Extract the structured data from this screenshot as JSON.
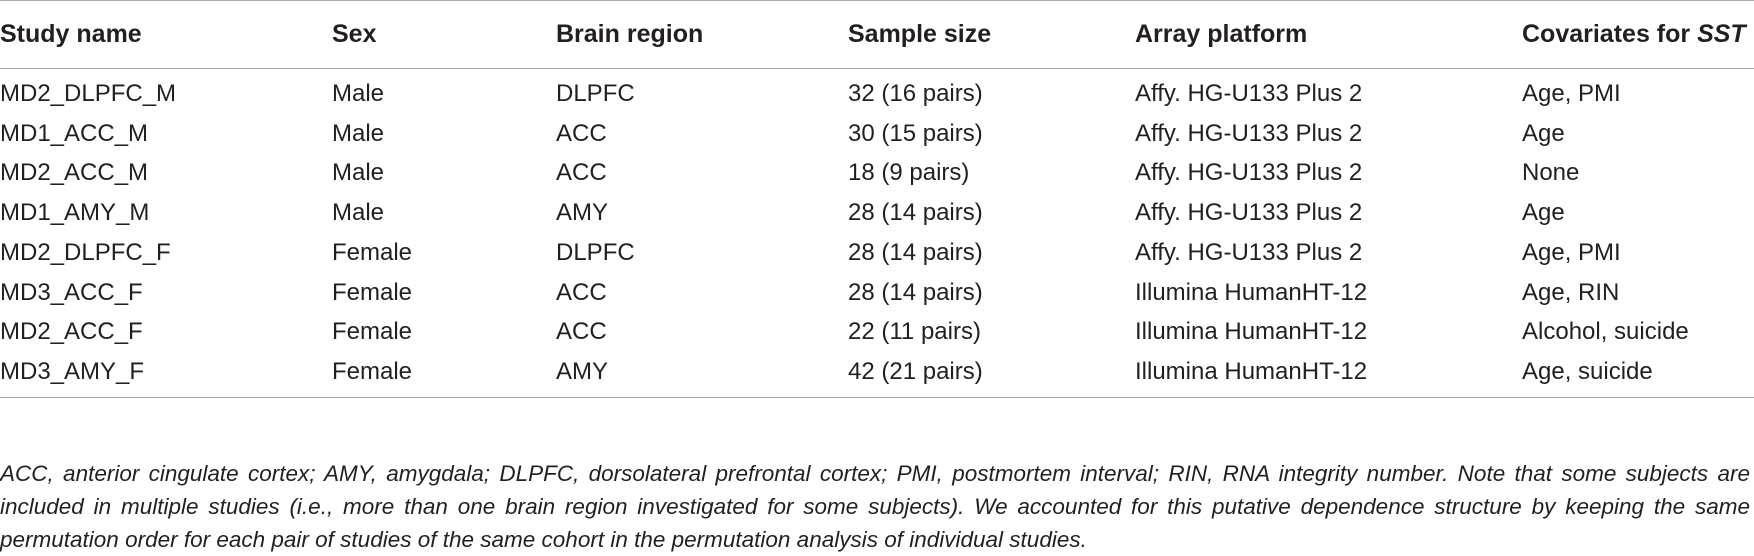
{
  "table": {
    "headers": {
      "study_name": "Study name",
      "sex": "Sex",
      "brain_region": "Brain region",
      "sample_size": "Sample size",
      "array_platform": "Array platform",
      "covariates_prefix": "Covariates for ",
      "covariates_em": "SST"
    },
    "rows": [
      [
        "MD2_DLPFC_M",
        "Male",
        "DLPFC",
        "32 (16 pairs)",
        "Affy. HG-U133 Plus 2",
        "Age, PMI"
      ],
      [
        "MD1_ACC_M",
        "Male",
        "ACC",
        "30 (15 pairs)",
        "Affy. HG-U133 Plus 2",
        "Age"
      ],
      [
        "MD2_ACC_M",
        "Male",
        "ACC",
        "18 (9 pairs)",
        "Affy. HG-U133 Plus 2",
        "None"
      ],
      [
        "MD1_AMY_M",
        "Male",
        "AMY",
        "28 (14 pairs)",
        "Affy. HG-U133 Plus 2",
        "Age"
      ],
      [
        "MD2_DLPFC_F",
        "Female",
        "DLPFC",
        "28 (14 pairs)",
        "Affy. HG-U133 Plus 2",
        "Age, PMI"
      ],
      [
        "MD3_ACC_F",
        "Female",
        "ACC",
        "28 (14 pairs)",
        "Illumina HumanHT-12",
        "Age, RIN"
      ],
      [
        "MD2_ACC_F",
        "Female",
        "ACC",
        "22 (11 pairs)",
        "Illumina HumanHT-12",
        "Alcohol, suicide"
      ],
      [
        "MD3_AMY_F",
        "Female",
        "AMY",
        "42 (21 pairs)",
        "Illumina HumanHT-12",
        "Age, suicide"
      ]
    ]
  },
  "footnote": "ACC, anterior cingulate cortex; AMY, amygdala; DLPFC, dorsolateral prefrontal cortex; PMI, postmortem interval; RIN, RNA integrity number. Note that some subjects are included in multiple studies (i.e., more than one brain region investigated for some subjects). We accounted for this putative dependence structure by keeping the same permutation order for each pair of studies of the same cohort in the permutation analysis of individual studies."
}
